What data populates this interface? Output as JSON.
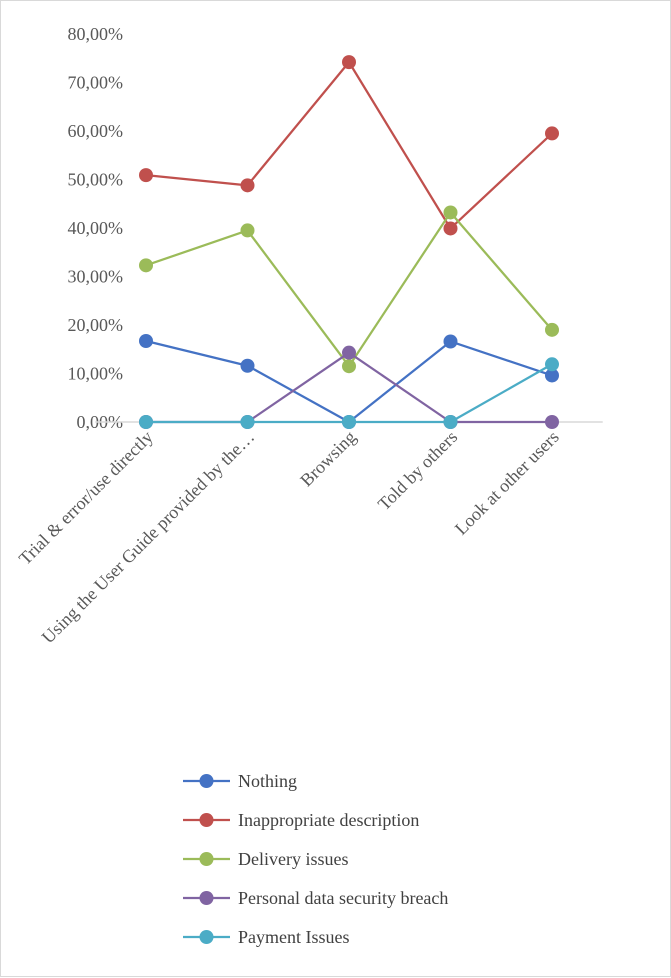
{
  "chart_data": {
    "type": "line",
    "categories": [
      "Trial & error/use directly",
      "Using the User Guide provided by the…",
      "Browsing",
      "Told by others",
      "Look at other users"
    ],
    "y_ticks": [
      "0,00%",
      "10,00%",
      "20,00%",
      "30,00%",
      "40,00%",
      "50,00%",
      "60,00%",
      "70,00%",
      "80,00%"
    ],
    "ylim": [
      0,
      80
    ],
    "grid": false,
    "legend_position": "bottom",
    "series": [
      {
        "name": "Nothing",
        "color": "#4472c4",
        "values": [
          16.7,
          11.6,
          0.0,
          16.6,
          9.6
        ]
      },
      {
        "name": "Inappropriate description",
        "color": "#c0504d",
        "values": [
          50.9,
          48.8,
          74.2,
          39.9,
          59.5
        ]
      },
      {
        "name": "Delivery issues",
        "color": "#9bbb59",
        "values": [
          32.3,
          39.5,
          11.5,
          43.2,
          19.0
        ]
      },
      {
        "name": "Personal data security breach",
        "color": "#8064a2",
        "values": [
          0.0,
          0.0,
          14.3,
          0.0,
          0.0
        ]
      },
      {
        "name": "Payment Issues",
        "color": "#4bacc6",
        "values": [
          0.0,
          0.0,
          0.0,
          0.0,
          11.9
        ]
      }
    ]
  }
}
